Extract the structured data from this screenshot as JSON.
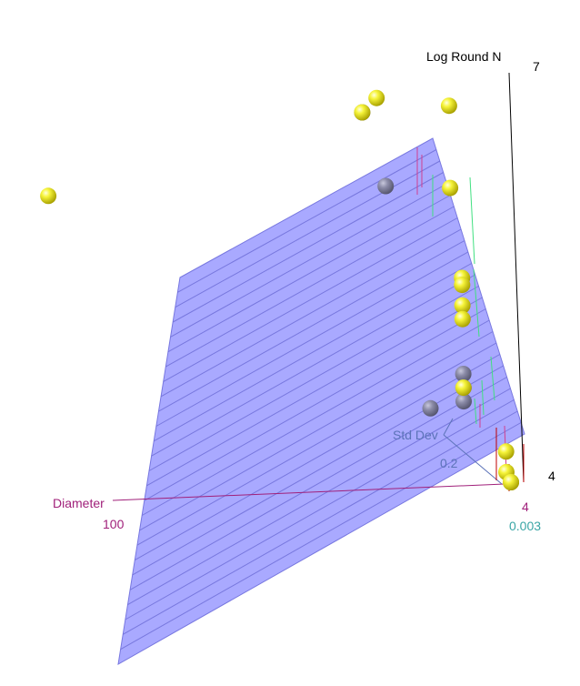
{
  "chart_data": {
    "type": "scatter",
    "subtype": "3d-scatter-with-fitted-plane",
    "axes": {
      "z": {
        "label": "Log Round N",
        "ticks": [
          "7",
          "4"
        ],
        "color": "#000000"
      },
      "x": {
        "label": "Diameter",
        "ticks": [
          "100",
          "4"
        ],
        "color": "#a0207a"
      },
      "y": {
        "label": "Std Dev",
        "ticks": [
          "0.2",
          "0.003"
        ],
        "color": "#5c73b8"
      }
    },
    "plane": {
      "fill": "#8080ff",
      "line": "#6b6bd6",
      "opacity": 0.7
    },
    "series": [
      {
        "role": "observed",
        "color": "#f0f020",
        "points": [
          {
            "diameter": 8,
            "std_dev": 0.05,
            "log_round_n": 6.6
          },
          {
            "diameter": 9,
            "std_dev": 0.05,
            "log_round_n": 6.5
          },
          {
            "diameter": 5,
            "std_dev": 0.02,
            "log_round_n": 6.6
          },
          {
            "diameter": 5,
            "std_dev": 0.02,
            "log_round_n": 6.0
          },
          {
            "diameter": 100,
            "std_dev": 0.15,
            "log_round_n": 5.9
          },
          {
            "diameter": 5,
            "std_dev": 0.01,
            "log_round_n": 5.4
          },
          {
            "diameter": 5,
            "std_dev": 0.01,
            "log_round_n": 5.35
          },
          {
            "diameter": 5,
            "std_dev": 0.01,
            "log_round_n": 5.2
          },
          {
            "diameter": 5,
            "std_dev": 0.01,
            "log_round_n": 5.1
          },
          {
            "diameter": 5,
            "std_dev": 0.01,
            "log_round_n": 4.6
          },
          {
            "diameter": 4,
            "std_dev": 0.004,
            "log_round_n": 4.2
          },
          {
            "diameter": 4,
            "std_dev": 0.004,
            "log_round_n": 4.05
          },
          {
            "diameter": 4,
            "std_dev": 0.003,
            "log_round_n": 4.0
          },
          {
            "diameter": 4,
            "std_dev": 0.003,
            "log_round_n": 4.0
          },
          {
            "diameter": 4,
            "std_dev": 0.003,
            "log_round_n": 4.0
          }
        ]
      },
      {
        "role": "below-plane",
        "color": "#8c8ca8",
        "points": [
          {
            "diameter": 9,
            "std_dev": 0.05,
            "log_round_n": 6.5
          },
          {
            "diameter": 8,
            "std_dev": 0.03,
            "log_round_n": 6.0
          },
          {
            "diameter": 5,
            "std_dev": 0.01,
            "log_round_n": 4.7
          },
          {
            "diameter": 5,
            "std_dev": 0.01,
            "log_round_n": 4.6
          },
          {
            "diameter": 5,
            "std_dev": 0.01,
            "log_round_n": 4.5
          },
          {
            "diameter": 6,
            "std_dev": 0.02,
            "log_round_n": 4.4
          }
        ]
      }
    ],
    "grid": false,
    "legend": "none"
  }
}
